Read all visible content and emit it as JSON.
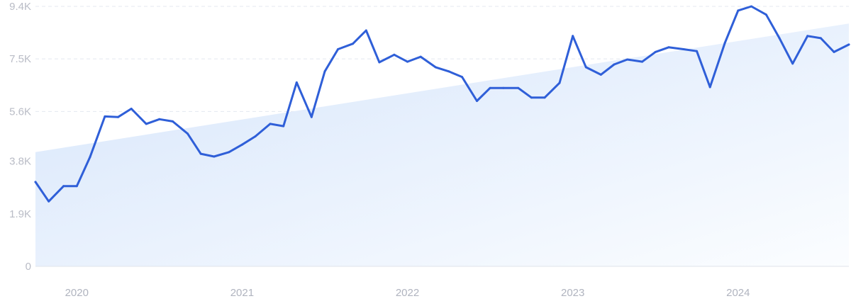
{
  "chart_data": {
    "type": "line",
    "title": "",
    "xlabel": "",
    "ylabel": "",
    "ylim": [
      0,
      9400
    ],
    "grid": true,
    "y_ticks": [
      "0",
      "1.9K",
      "3.8K",
      "5.6K",
      "7.5K",
      "9.4K"
    ],
    "y_tick_values": [
      0,
      1900,
      3800,
      5600,
      7500,
      9400
    ],
    "x_ticks": [
      "2020",
      "2021",
      "2022",
      "2023",
      "2024"
    ],
    "x_tick_values": [
      2020,
      2021,
      2022,
      2023,
      2024
    ],
    "xlim": [
      2019.75,
      2024.67
    ],
    "x": [
      2019.75,
      2019.83,
      2019.92,
      2020.0,
      2020.08,
      2020.17,
      2020.25,
      2020.33,
      2020.42,
      2020.5,
      2020.58,
      2020.67,
      2020.75,
      2020.83,
      2020.92,
      2021.0,
      2021.08,
      2021.17,
      2021.25,
      2021.33,
      2021.42,
      2021.5,
      2021.58,
      2021.67,
      2021.75,
      2021.83,
      2021.92,
      2022.0,
      2022.08,
      2022.17,
      2022.25,
      2022.33,
      2022.42,
      2022.5,
      2022.58,
      2022.67,
      2022.75,
      2022.83,
      2022.92,
      2023.0,
      2023.08,
      2023.17,
      2023.25,
      2023.33,
      2023.42,
      2023.5,
      2023.58,
      2023.67,
      2023.75,
      2023.83,
      2023.92,
      2024.0,
      2024.08,
      2024.17,
      2024.25,
      2024.33,
      2024.42,
      2024.5,
      2024.58,
      2024.67
    ],
    "values": [
      3050,
      2350,
      2900,
      2900,
      3950,
      5420,
      5400,
      5700,
      5150,
      5320,
      5240,
      4800,
      4070,
      3970,
      4130,
      4400,
      4700,
      5150,
      5070,
      6650,
      5400,
      7050,
      7850,
      8050,
      8530,
      7380,
      7650,
      7400,
      7580,
      7200,
      7050,
      6850,
      5980,
      6450,
      6450,
      6450,
      6100,
      6100,
      6630,
      8330,
      7200,
      6930,
      7300,
      7480,
      7400,
      7750,
      7920,
      7850,
      7780,
      6480,
      8080,
      9250,
      9400,
      9100,
      8250,
      7330,
      8330,
      8250,
      7750,
      8020
    ],
    "trend": {
      "x": [
        2019.75,
        2024.67
      ],
      "values": [
        4130,
        8780
      ]
    },
    "colors": {
      "line": "#2f5fd8",
      "fill_start": "#dbe8fb",
      "fill_end": "#f8fbff",
      "grid": "#e4e8ef",
      "tick_text": "#b9bcc6"
    }
  }
}
